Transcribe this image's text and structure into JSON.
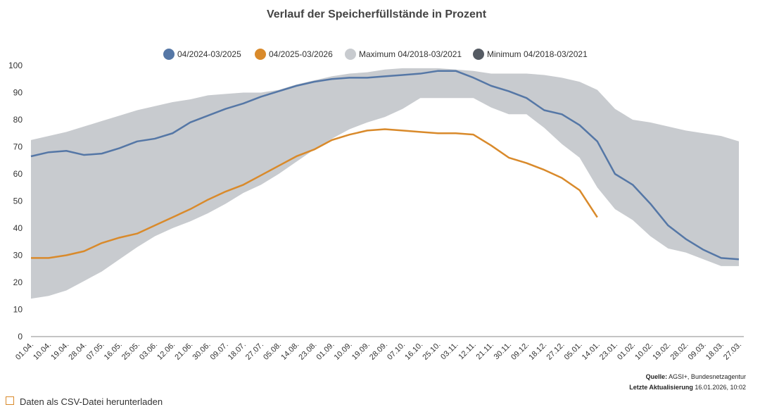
{
  "chart_data": {
    "type": "line",
    "title": "Verlauf der Speicherfüllstände in Prozent",
    "categories": [
      "01.04.",
      "10.04.",
      "19.04.",
      "28.04.",
      "07.05.",
      "16.05.",
      "25.05.",
      "03.06.",
      "12.06.",
      "21.06.",
      "30.06.",
      "09.07.",
      "18.07.",
      "27.07.",
      "05.08.",
      "14.08.",
      "23.08.",
      "01.09.",
      "10.09.",
      "19.09.",
      "28.09.",
      "07.10.",
      "16.10.",
      "25.10.",
      "03.11.",
      "12.11.",
      "21.11.",
      "30.11.",
      "09.12.",
      "18.12.",
      "27.12.",
      "05.01.",
      "14.01.",
      "23.01.",
      "01.02.",
      "10.02.",
      "19.02.",
      "28.02.",
      "09.03.",
      "18.03.",
      "27.03."
    ],
    "series": [
      {
        "name": "04/2024-03/2025",
        "color": "#5577a6",
        "values": [
          66.5,
          68,
          68.5,
          67,
          67.5,
          69.5,
          72,
          73,
          75,
          79,
          81.5,
          84,
          86,
          88.5,
          90.5,
          92.5,
          94,
          95,
          95.5,
          95.5,
          96,
          96.5,
          97,
          98,
          98,
          95.5,
          92.5,
          90.5,
          88,
          83.5,
          82,
          78,
          72,
          60,
          56,
          49,
          41,
          36,
          32,
          29,
          28.5
        ]
      },
      {
        "name": "04/2025-03/2026",
        "color": "#d98a2b",
        "values": [
          29,
          29,
          30,
          31.5,
          34.5,
          36.5,
          38,
          41,
          44,
          47,
          50.5,
          53.5,
          56,
          59.5,
          63,
          66.5,
          69,
          72.5,
          74.5,
          76,
          76.5,
          76,
          75.5,
          75,
          75,
          74.5,
          70.5,
          66,
          64,
          61.5,
          58.5,
          54,
          44,
          null,
          null,
          null,
          null,
          null,
          null,
          null,
          null
        ]
      },
      {
        "name": "Maximum 04/2018-03/2021",
        "color": "#c8cbcf",
        "values": [
          72.5,
          74,
          75.5,
          77.5,
          79.5,
          81.5,
          83.5,
          85,
          86.5,
          87.5,
          89,
          89.5,
          90,
          90,
          91,
          93,
          94.5,
          96,
          97,
          97.5,
          98.5,
          99,
          99,
          99,
          98.5,
          98,
          97,
          97,
          97,
          96.5,
          95.5,
          94,
          91,
          84,
          80,
          79,
          77.5,
          76,
          75,
          74,
          72
        ]
      },
      {
        "name": "Minimum 04/2018-03/2021",
        "color": "#555b63",
        "values": [
          14,
          15,
          17,
          20.5,
          24,
          28.5,
          33,
          37,
          40,
          42.5,
          45.5,
          49,
          53,
          56,
          60,
          64.5,
          69,
          73,
          76.5,
          79,
          81,
          84,
          88,
          88,
          88,
          88,
          84.5,
          82,
          82,
          77,
          71,
          66,
          55,
          47,
          43,
          37,
          32.5,
          31,
          28.5,
          26,
          26
        ]
      }
    ],
    "ylim": [
      0,
      100
    ],
    "yticks": [
      0,
      10,
      20,
      30,
      40,
      50,
      60,
      70,
      80,
      90,
      100
    ],
    "grid": false,
    "source_label": "Quelle:",
    "source": "AGSI+, Bundesnetzagentur",
    "updated_label": "Letzte Aktualisierung",
    "updated": "16.01.2026, 10:02",
    "csv_link": "Daten als CSV-Datei herunterladen"
  }
}
